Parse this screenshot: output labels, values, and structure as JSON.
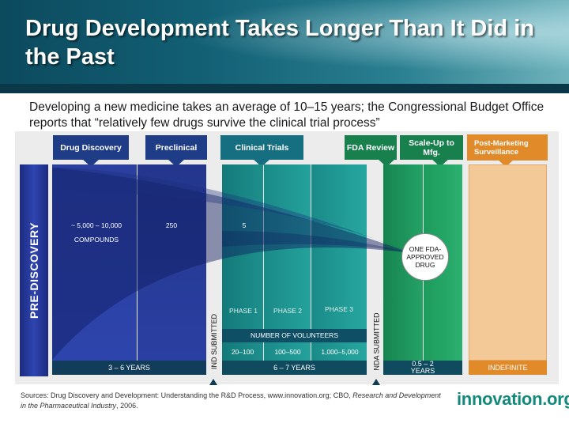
{
  "title": "Drug Development Takes Longer Than It Did in the Past",
  "subtitle": "Developing a new medicine takes an average of 10–15 years; the Congressional Budget Office reports that “relatively few drugs survive the clinical trial process”",
  "stages": {
    "drug_discovery": "Drug Discovery",
    "preclinical": "Preclinical",
    "clinical_trials": "Clinical Trials",
    "fda_review": "FDA Review",
    "scale_up": "Scale-Up to Mfg.",
    "post_marketing": "Post-Marketing Surveillance"
  },
  "pre_discovery": "PRE-DISCOVERY",
  "compounds": {
    "discovery_count": "~ 5,000 – 10,000",
    "label": "COMPOUNDS",
    "preclinical_count": "250",
    "clinical_count": "5"
  },
  "phases": {
    "phase1": "PHASE 1",
    "phase2": "PHASE 2",
    "phase3": "PHASE 3"
  },
  "volunteers": {
    "header": "NUMBER OF VOLUNTEERS",
    "phase1": "20–100",
    "phase2": "100–500",
    "phase3": "1,000–5,000"
  },
  "submissions": {
    "ind": "IND SUBMITTED",
    "nda": "NDA SUBMITTED"
  },
  "approved": "ONE FDA-APPROVED DRUG",
  "durations": {
    "discovery": "3 – 6  YEARS",
    "clinical": "6 – 7  YEARS",
    "review": "0.5 – 2 YEARS",
    "post": "INDEFINITE"
  },
  "sources": {
    "prefix": "Sources: Drug Discovery and Development: Understanding the R&D Process, www.innovation.org; CBO, ",
    "italic": "Research and Development in the Pharmaceutical Industry",
    "suffix": ", 2006."
  },
  "logo": "innovation.org",
  "colors": {
    "discovery_blue": "#25388f",
    "clinical_teal": "#1b7f7f",
    "review_green": "#1f8f5f",
    "post_orange": "#e08a2a",
    "year_bar": "#0f3d52"
  }
}
